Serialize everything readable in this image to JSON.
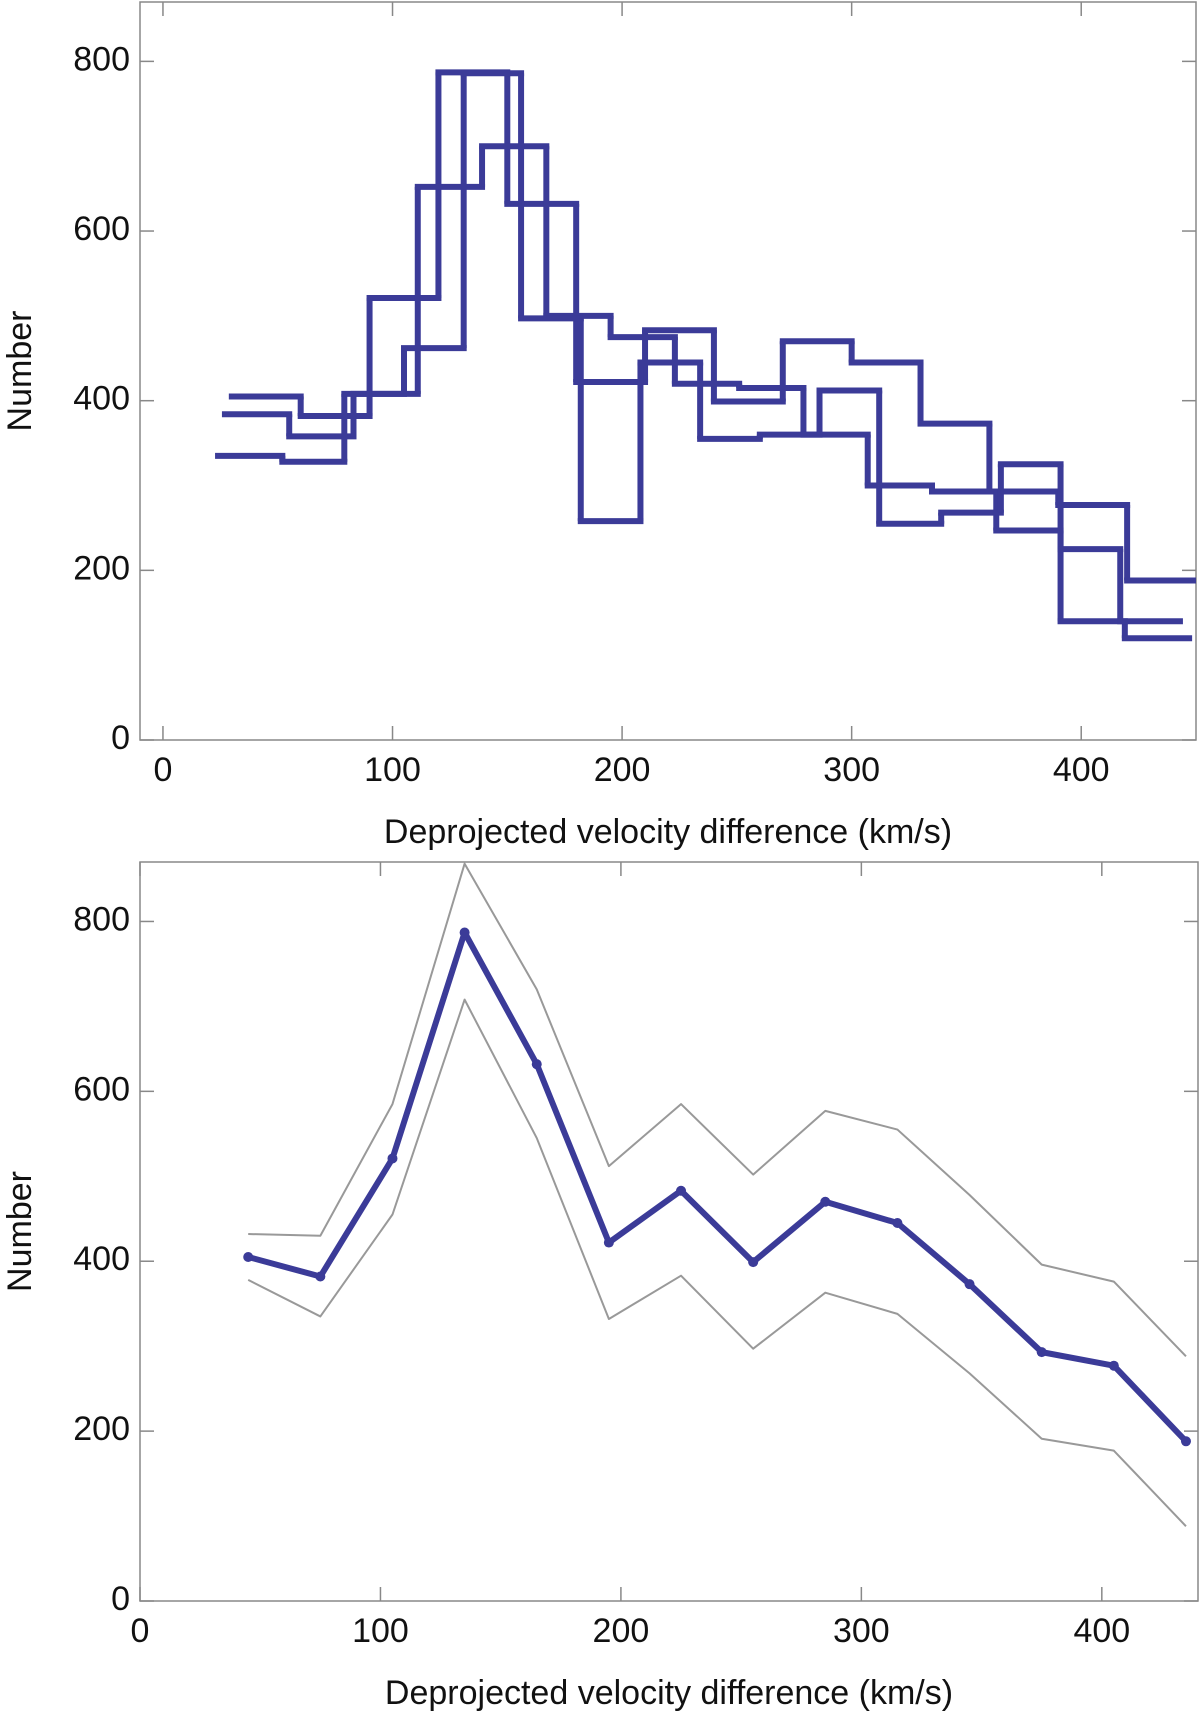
{
  "chart_data": [
    {
      "type": "histogram",
      "xlabel": "Deprojected velocity difference (km/s)",
      "ylabel": "Number",
      "xlim": [
        -10,
        450
      ],
      "ylim": [
        0,
        870
      ],
      "xticks": [
        0,
        100,
        200,
        300,
        400
      ],
      "yticks": [
        0,
        200,
        400,
        600,
        800
      ],
      "series": [
        {
          "color": "#3b3b98",
          "bins": [
            30,
            60,
            90,
            120,
            150,
            180,
            210,
            240,
            270,
            300,
            330,
            360,
            390,
            420,
            450
          ],
          "values": [
            405,
            382,
            521,
            787,
            632,
            422,
            483,
            399,
            470,
            445,
            373,
            293,
            277,
            188
          ]
        },
        {
          "color": "#3b3b98",
          "bins": [
            27,
            55,
            83,
            111,
            139,
            167,
            195,
            223,
            251,
            279,
            307,
            335,
            363,
            391,
            419,
            447
          ],
          "values": [
            384,
            358,
            408,
            652,
            700,
            500,
            475,
            420,
            415,
            360,
            300,
            293,
            247,
            140,
            120
          ]
        },
        {
          "color": "#3b3b98",
          "bins": [
            24,
            52,
            79,
            105,
            131,
            156,
            182,
            208,
            234,
            260,
            286,
            312,
            339,
            365,
            391,
            417,
            443
          ],
          "values": [
            335,
            328,
            408,
            462,
            786,
            497,
            258,
            445,
            355,
            360,
            412,
            255,
            268,
            325,
            225,
            140
          ]
        }
      ]
    },
    {
      "type": "line",
      "xlabel": "Deprojected velocity difference (km/s)",
      "ylabel": "Number",
      "xlim": [
        0,
        440
      ],
      "ylim": [
        0,
        870
      ],
      "xticks": [
        0,
        100,
        200,
        300,
        400
      ],
      "yticks": [
        0,
        200,
        400,
        600,
        800
      ],
      "x": [
        45,
        75,
        105,
        135,
        165,
        195,
        225,
        255,
        285,
        315,
        345,
        375,
        405,
        435
      ],
      "series": [
        {
          "color": "#999999",
          "markers": false,
          "values": [
            432,
            430,
            585,
            868,
            720,
            512,
            585,
            502,
            577,
            555,
            478,
            396,
            376,
            288
          ]
        },
        {
          "color": "#999999",
          "markers": false,
          "values": [
            378,
            335,
            455,
            708,
            545,
            332,
            383,
            297,
            363,
            338,
            268,
            191,
            177,
            88
          ]
        },
        {
          "color": "#3b3b98",
          "markers": true,
          "values": [
            405,
            382,
            521,
            787,
            632,
            422,
            483,
            399,
            470,
            445,
            373,
            293,
            277,
            188
          ]
        }
      ]
    }
  ]
}
